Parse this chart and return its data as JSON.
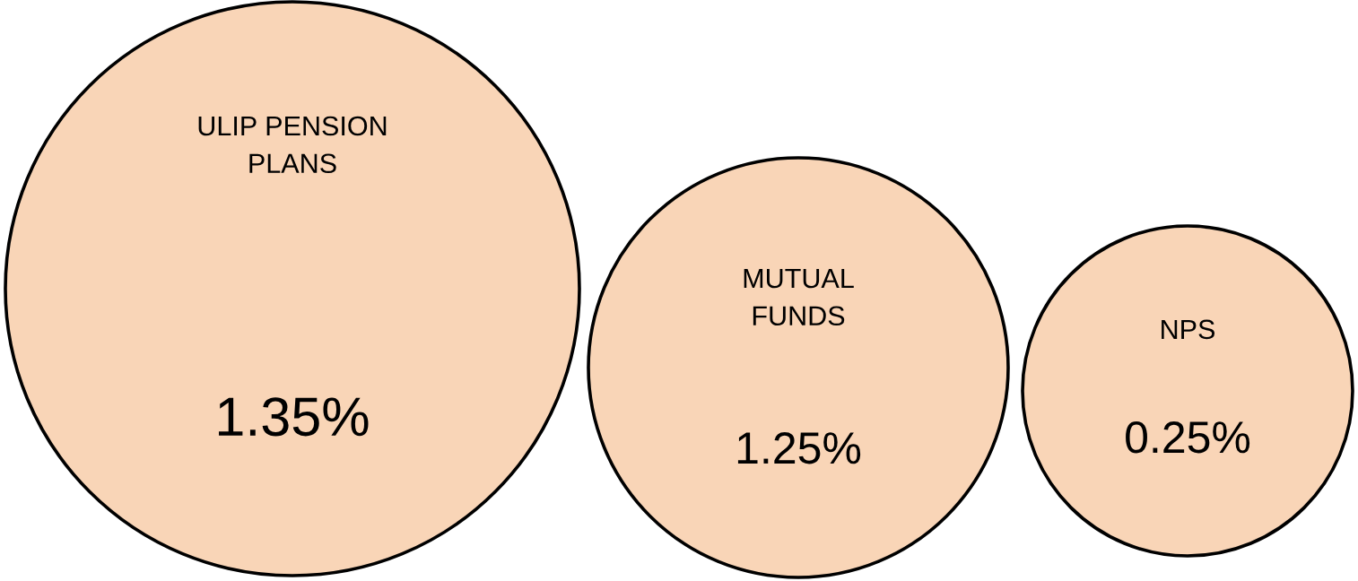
{
  "chart_data": {
    "type": "other",
    "categories": [
      "ULIP PENSION\nPLANS",
      "MUTUAL\nFUNDS",
      "NPS"
    ],
    "values": [
      1.35,
      1.25,
      0.25
    ],
    "value_labels": [
      "1.35%",
      "1.25%",
      "0.25%"
    ],
    "color": "#f9d5b7"
  }
}
